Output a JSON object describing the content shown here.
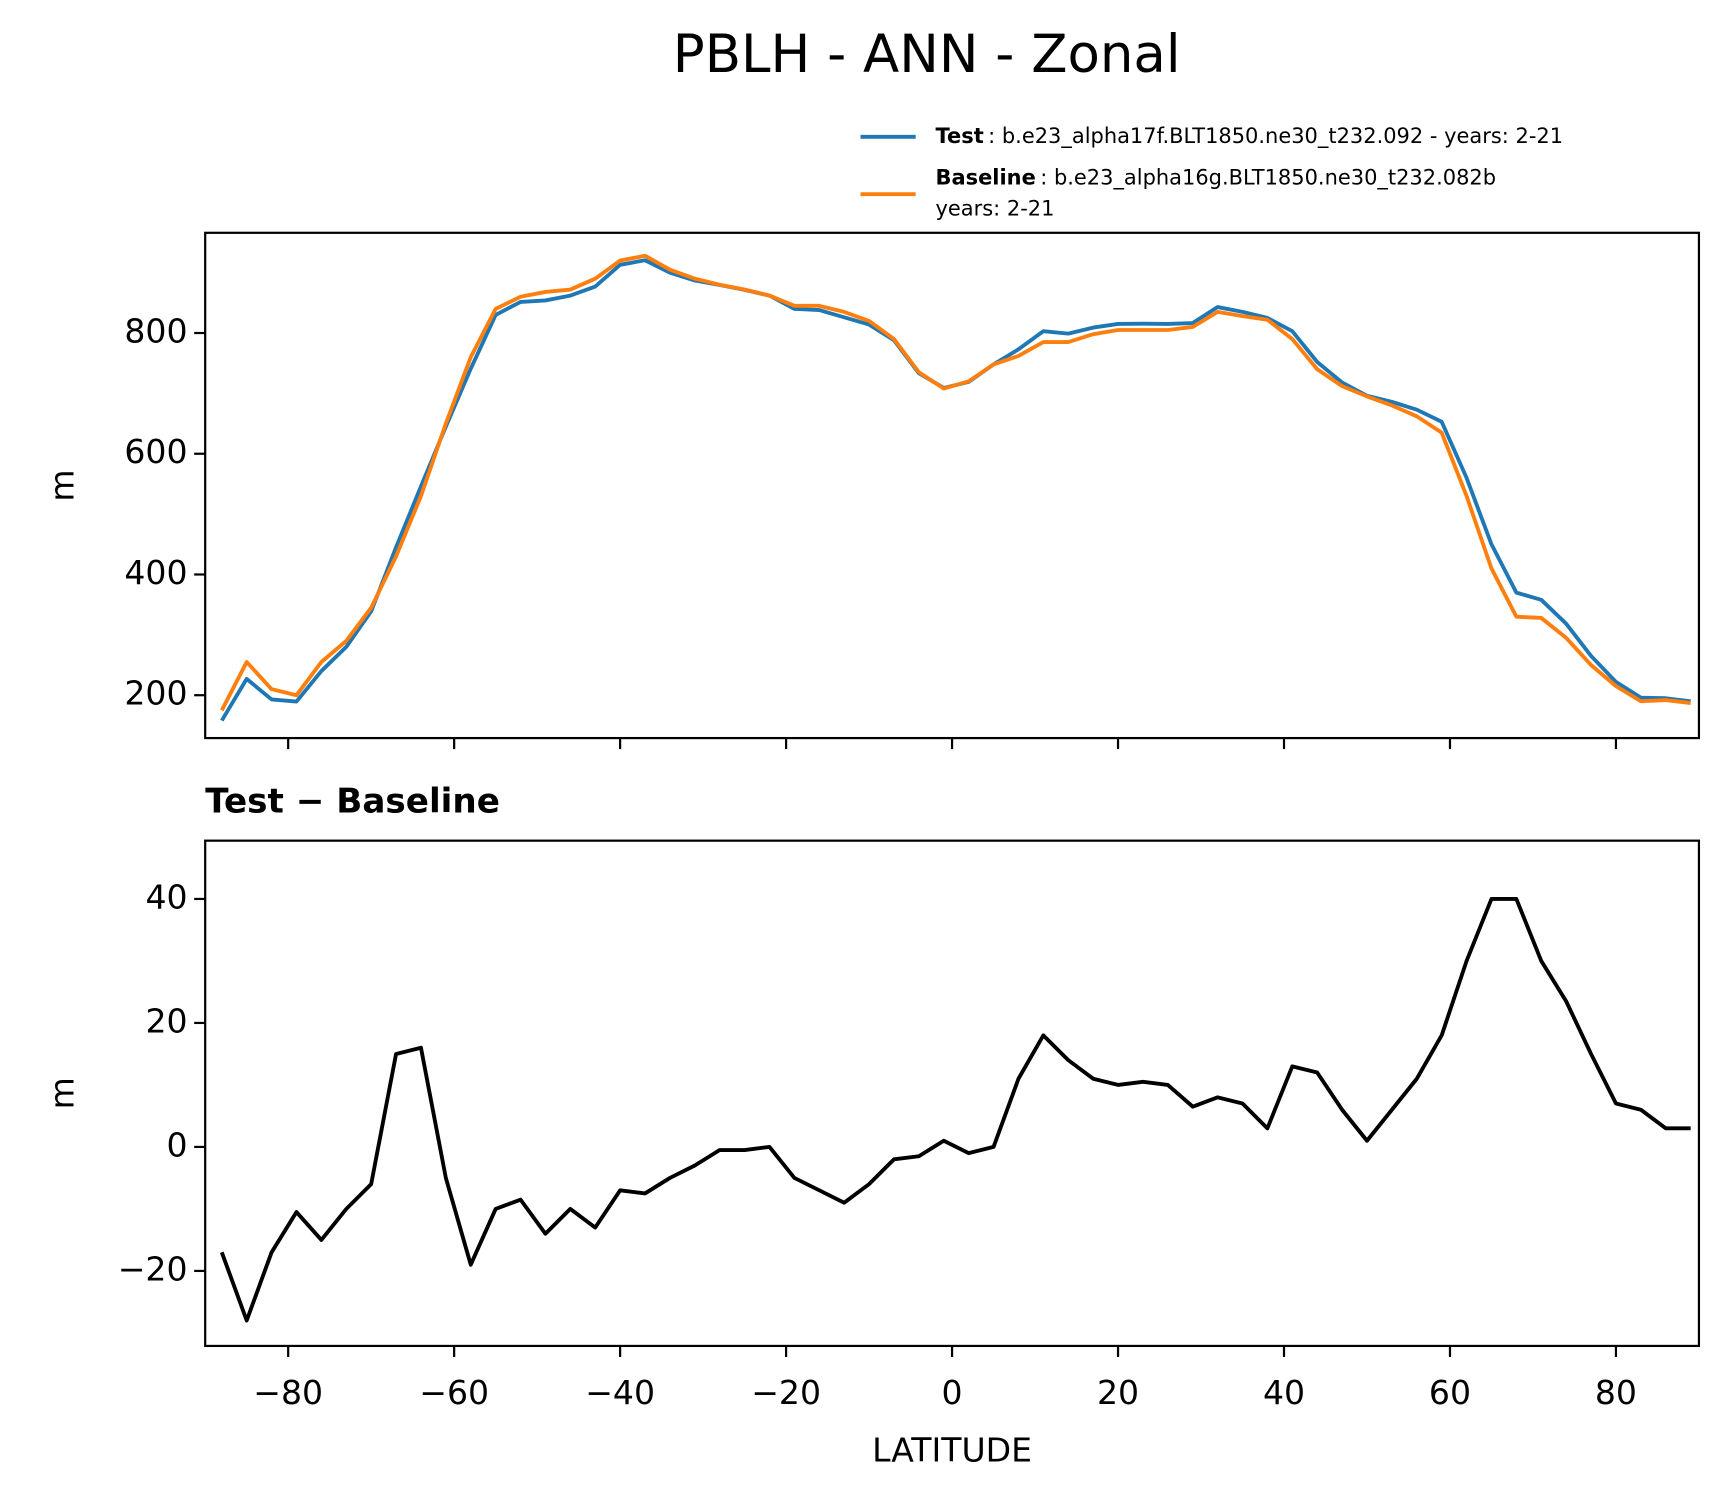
{
  "chart_data": [
    {
      "type": "line",
      "title": "PBLH - ANN - Zonal",
      "title_loc": "center",
      "ylabel": "m",
      "x": [
        -88,
        -85,
        -82,
        -79,
        -76,
        -73,
        -70,
        -67,
        -64,
        -61,
        -58,
        -55,
        -52,
        -49,
        -46,
        -43,
        -40,
        -37,
        -34,
        -31,
        -28,
        -25,
        -22,
        -19,
        -16,
        -13,
        -10,
        -7,
        -4,
        -1,
        2,
        5,
        8,
        11,
        14,
        17,
        20,
        23,
        26,
        29,
        32,
        35,
        38,
        41,
        44,
        47,
        50,
        53,
        56,
        59,
        62,
        65,
        68,
        71,
        74,
        77,
        80,
        83,
        86,
        89
      ],
      "series": [
        {
          "name": "Test",
          "desc": ": b.e23_alpha17f.BLT1850.ne30_t232.092 - years: 2-21",
          "color": "#1f77b4",
          "values": [
            158,
            227,
            193,
            189.5,
            240,
            280,
            339,
            445,
            546,
            645,
            741,
            830,
            851.5,
            854,
            862,
            877,
            913,
            920.5,
            900,
            887,
            879.5,
            871.5,
            862,
            840,
            838,
            826,
            814,
            788,
            733.5,
            709,
            719,
            748,
            773,
            803,
            799,
            809,
            815,
            815.5,
            815,
            816.5,
            843,
            835,
            825,
            803,
            752,
            718,
            696,
            686,
            673,
            653,
            560,
            450,
            370,
            358,
            318.5,
            265,
            222,
            196,
            195,
            190
          ]
        },
        {
          "name": "Baseline",
          "desc": ": b.e23_alpha16g.BLT1850.ne30_t232.082b",
          "desc2": "years: 2-21",
          "color": "#ff7f0e",
          "values": [
            175,
            255,
            210,
            200,
            255,
            290,
            345,
            430,
            530,
            650,
            760,
            840,
            860,
            868,
            872,
            890,
            920,
            928,
            905,
            890,
            880,
            872,
            862,
            845,
            845,
            835,
            820,
            790,
            735,
            708,
            720,
            748,
            762,
            785,
            785,
            798,
            805,
            805,
            805,
            810,
            835,
            828,
            822,
            790,
            740,
            712,
            695,
            680,
            662,
            635,
            530,
            410,
            330,
            328,
            295,
            250,
            215,
            190,
            192,
            187
          ]
        }
      ],
      "xlim": [
        -90,
        90
      ],
      "xticks": [
        -80,
        -60,
        -40,
        -20,
        0,
        20,
        40,
        60,
        80
      ],
      "show_xtick_labels": false,
      "ylim": [
        129,
        966
      ],
      "yticks": [
        200,
        400,
        600,
        800
      ],
      "grid": false
    },
    {
      "type": "line",
      "title": "Test − Baseline",
      "title_loc": "left",
      "ylabel": "m",
      "xlabel": "LATITUDE",
      "x": [
        -88,
        -85,
        -82,
        -79,
        -76,
        -73,
        -70,
        -67,
        -64,
        -61,
        -58,
        -55,
        -52,
        -49,
        -46,
        -43,
        -40,
        -37,
        -34,
        -31,
        -28,
        -25,
        -22,
        -19,
        -16,
        -13,
        -10,
        -7,
        -4,
        -1,
        2,
        5,
        8,
        11,
        14,
        17,
        20,
        23,
        26,
        29,
        32,
        35,
        38,
        41,
        44,
        47,
        50,
        53,
        56,
        59,
        62,
        65,
        68,
        71,
        74,
        77,
        80,
        83,
        86,
        89
      ],
      "values": [
        -17,
        -28,
        -17,
        -10.5,
        -15,
        -10,
        -6,
        15,
        16,
        -5,
        -19,
        -10,
        -8.5,
        -14,
        -10,
        -13,
        -7,
        -7.5,
        -5,
        -3,
        -0.5,
        -0.5,
        0,
        -5,
        -7,
        -9,
        -6,
        -2,
        -1.5,
        1,
        -1,
        0,
        11,
        18,
        14,
        11,
        10,
        10.5,
        10,
        6.5,
        8,
        7,
        3,
        13,
        12,
        6,
        1,
        6,
        11,
        18,
        30,
        40,
        40,
        30,
        23.5,
        15,
        7,
        6,
        3,
        3
      ],
      "color": "#000000",
      "xlim": [
        -90,
        90
      ],
      "xticks": [
        {
          "value": -80,
          "label": "−80"
        },
        {
          "value": -60,
          "label": "−60"
        },
        {
          "value": -40,
          "label": "−40"
        },
        {
          "value": -20,
          "label": "−20"
        },
        0,
        20,
        40,
        60,
        80
      ],
      "show_xtick_labels": true,
      "ylim": [
        -32.1,
        49.4
      ],
      "yticks": [
        {
          "value": -20,
          "label": "−20"
        },
        0,
        20,
        40
      ],
      "grid": false
    }
  ]
}
